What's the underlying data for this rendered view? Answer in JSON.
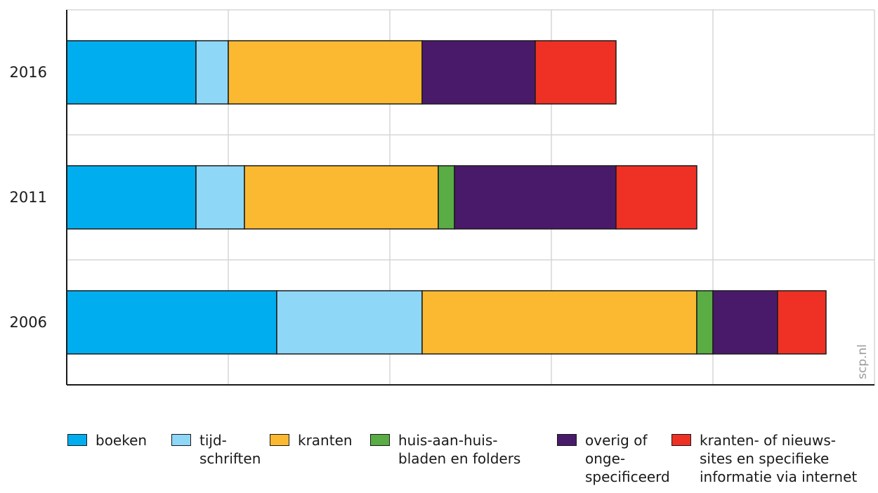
{
  "chart_data": {
    "type": "bar",
    "orientation": "horizontal",
    "stacked": true,
    "categories": [
      "2016",
      "2011",
      "2006"
    ],
    "series": [
      {
        "name": "boeken",
        "color": "#00aeef",
        "values": [
          0.8,
          0.8,
          1.3
        ]
      },
      {
        "name": "tijd-\nschriften",
        "color": "#8fd7f7",
        "values": [
          0.2,
          0.3,
          0.9
        ]
      },
      {
        "name": "kranten",
        "color": "#fbb931",
        "values": [
          1.2,
          1.2,
          1.7
        ]
      },
      {
        "name": "huis-aan-huis-\nbladen en folders",
        "color": "#5aac44",
        "values": [
          0,
          0.1,
          0.1
        ]
      },
      {
        "name": "overig of\nonge-\nspecificeerd",
        "color": "#4a1a6a",
        "values": [
          0.7,
          1.0,
          0.4
        ]
      },
      {
        "name": "kranten- of nieuws-\nsites en specifieke\ninformatie via internet",
        "color": "#ee3124",
        "values": [
          0.5,
          0.5,
          0.3
        ]
      }
    ],
    "xlim": [
      0,
      5
    ],
    "xticks": [
      "0",
      "1",
      "2",
      "3",
      "4",
      "5"
    ],
    "grid": true,
    "legend_position": "bottom",
    "credit": "scp.nl"
  }
}
